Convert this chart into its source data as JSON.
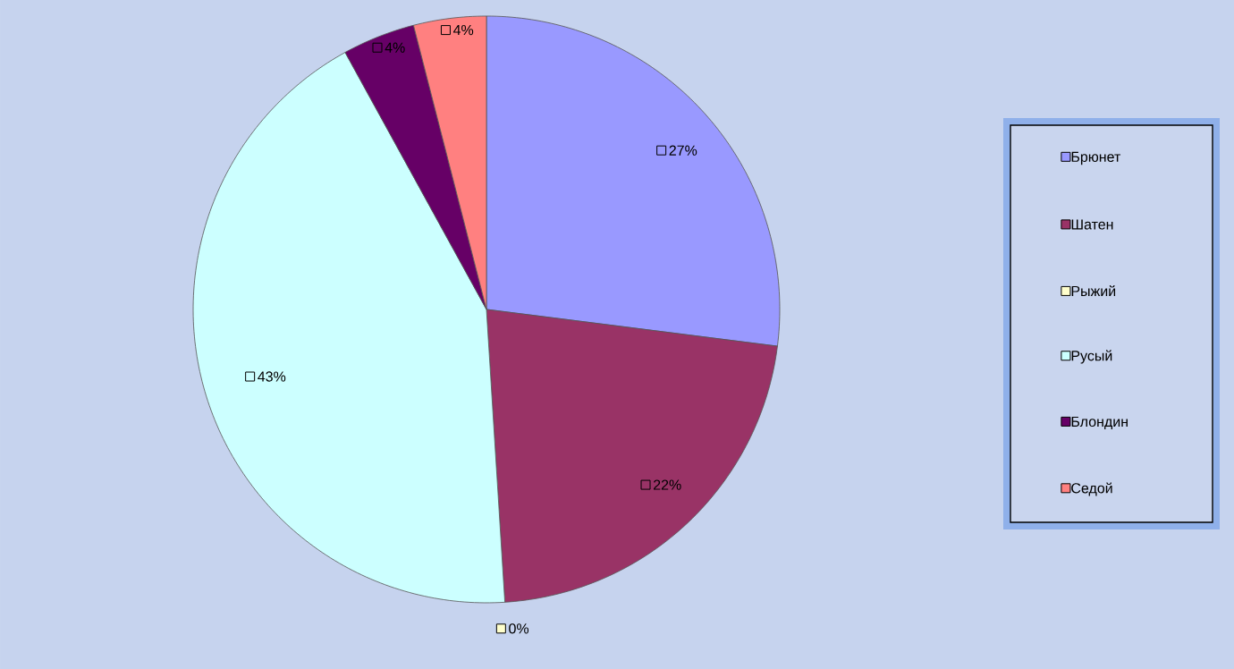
{
  "chart_data": {
    "type": "pie",
    "categories": [
      "Брюнет",
      "Шатен",
      "Рыжий",
      "Русый",
      "Блондин",
      "Седой"
    ],
    "values": [
      27,
      22,
      0,
      43,
      4,
      4
    ],
    "value_labels": [
      "27%",
      "22%",
      "0%",
      "43%",
      "4%",
      "4%"
    ],
    "colors": [
      "#9999ff",
      "#993366",
      "#ffffcc",
      "#ccffff",
      "#660066",
      "#ff8080"
    ],
    "legend": "right"
  }
}
